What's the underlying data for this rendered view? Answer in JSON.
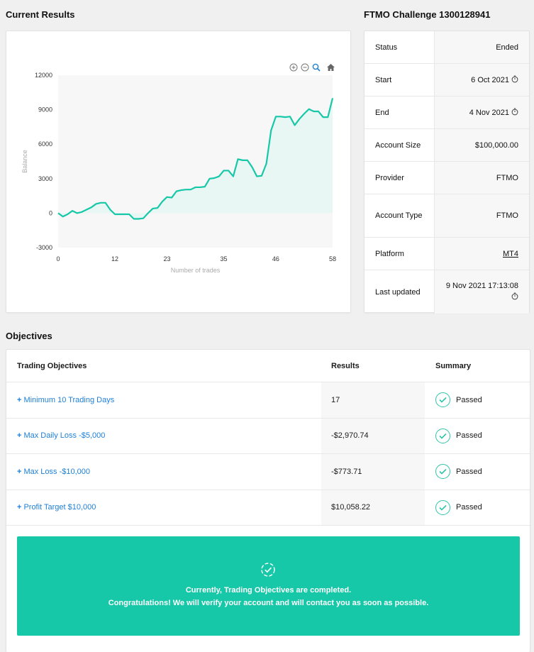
{
  "results_heading": "Current Results",
  "account_heading": "FTMO Challenge 1300128941",
  "objectives_heading": "Objectives",
  "chart_tools": [
    "zoom-in-icon",
    "zoom-out-icon",
    "zoom-select-icon",
    "home-icon"
  ],
  "chart_data": {
    "type": "area",
    "xlabel": "Number of trades",
    "ylabel": "Balance",
    "xlim": [
      0,
      58
    ],
    "ylim": [
      -3000,
      12000
    ],
    "yticks": [
      12000,
      9000,
      6000,
      3000,
      0,
      -3000
    ],
    "xticks": [
      0,
      12,
      23,
      35,
      46,
      58
    ],
    "line_color": "#16c8a8",
    "fill_color": "#e8f7f3",
    "grid": false,
    "x": [
      0,
      1,
      2,
      3,
      4,
      5,
      6,
      7,
      8,
      9,
      10,
      11,
      12,
      13,
      14,
      15,
      16,
      17,
      18,
      19,
      20,
      21,
      22,
      23,
      24,
      25,
      26,
      27,
      28,
      29,
      30,
      31,
      32,
      33,
      34,
      35,
      36,
      37,
      38,
      39,
      40,
      41,
      42,
      43,
      44,
      45,
      46,
      47,
      48,
      49,
      50,
      51,
      52,
      53,
      54,
      55,
      56,
      57,
      58
    ],
    "y": [
      0,
      -300,
      -100,
      200,
      0,
      100,
      300,
      500,
      800,
      900,
      900,
      300,
      -100,
      -100,
      -100,
      -100,
      -500,
      -500,
      -450,
      0,
      400,
      450,
      1000,
      1400,
      1350,
      1900,
      2000,
      2050,
      2050,
      2250,
      2250,
      2300,
      3000,
      3050,
      3200,
      3700,
      3700,
      3200,
      4700,
      4600,
      4600,
      4000,
      3200,
      3250,
      4300,
      7200,
      8400,
      8400,
      8350,
      8400,
      7650,
      8200,
      8650,
      9050,
      8850,
      8850,
      8350,
      8350,
      10000
    ]
  },
  "account_info": [
    {
      "label": "Status",
      "value": "Ended",
      "clock": false,
      "link": false
    },
    {
      "label": "Start",
      "value": "6 Oct 2021",
      "clock": true,
      "link": false
    },
    {
      "label": "End",
      "value": "4 Nov 2021",
      "clock": true,
      "link": false
    },
    {
      "label": "Account Size",
      "value": "$100,000.00",
      "clock": false,
      "link": false
    },
    {
      "label": "Provider",
      "value": "FTMO",
      "clock": false,
      "link": false
    },
    {
      "label": "Account Type",
      "value": "FTMO",
      "clock": false,
      "link": false
    },
    {
      "label": "Platform",
      "value": "MT4",
      "clock": false,
      "link": true
    },
    {
      "label": "Last updated",
      "value": "9 Nov 2021 17:13:08",
      "clock": true,
      "link": false
    }
  ],
  "objectives": {
    "headers": {
      "objective": "Trading Objectives",
      "results": "Results",
      "summary": "Summary"
    },
    "rows": [
      {
        "name": "Minimum 10 Trading Days",
        "result": "17",
        "summary": "Passed"
      },
      {
        "name": "Max Daily Loss -$5,000",
        "result": "-$2,970.74",
        "summary": "Passed"
      },
      {
        "name": "Max Loss -$10,000",
        "result": "-$773.71",
        "summary": "Passed"
      },
      {
        "name": "Profit Target $10,000",
        "result": "$10,058.22",
        "summary": "Passed"
      }
    ],
    "plus_sign": "+"
  },
  "banner": {
    "line1": "Currently, Trading Objectives are completed.",
    "line2": "Congratulations! We will verify your account and will contact you as soon as possible.",
    "color": "#16c8a8"
  },
  "colors": {
    "link": "#1e7fd6",
    "accent": "#16c8a8"
  }
}
